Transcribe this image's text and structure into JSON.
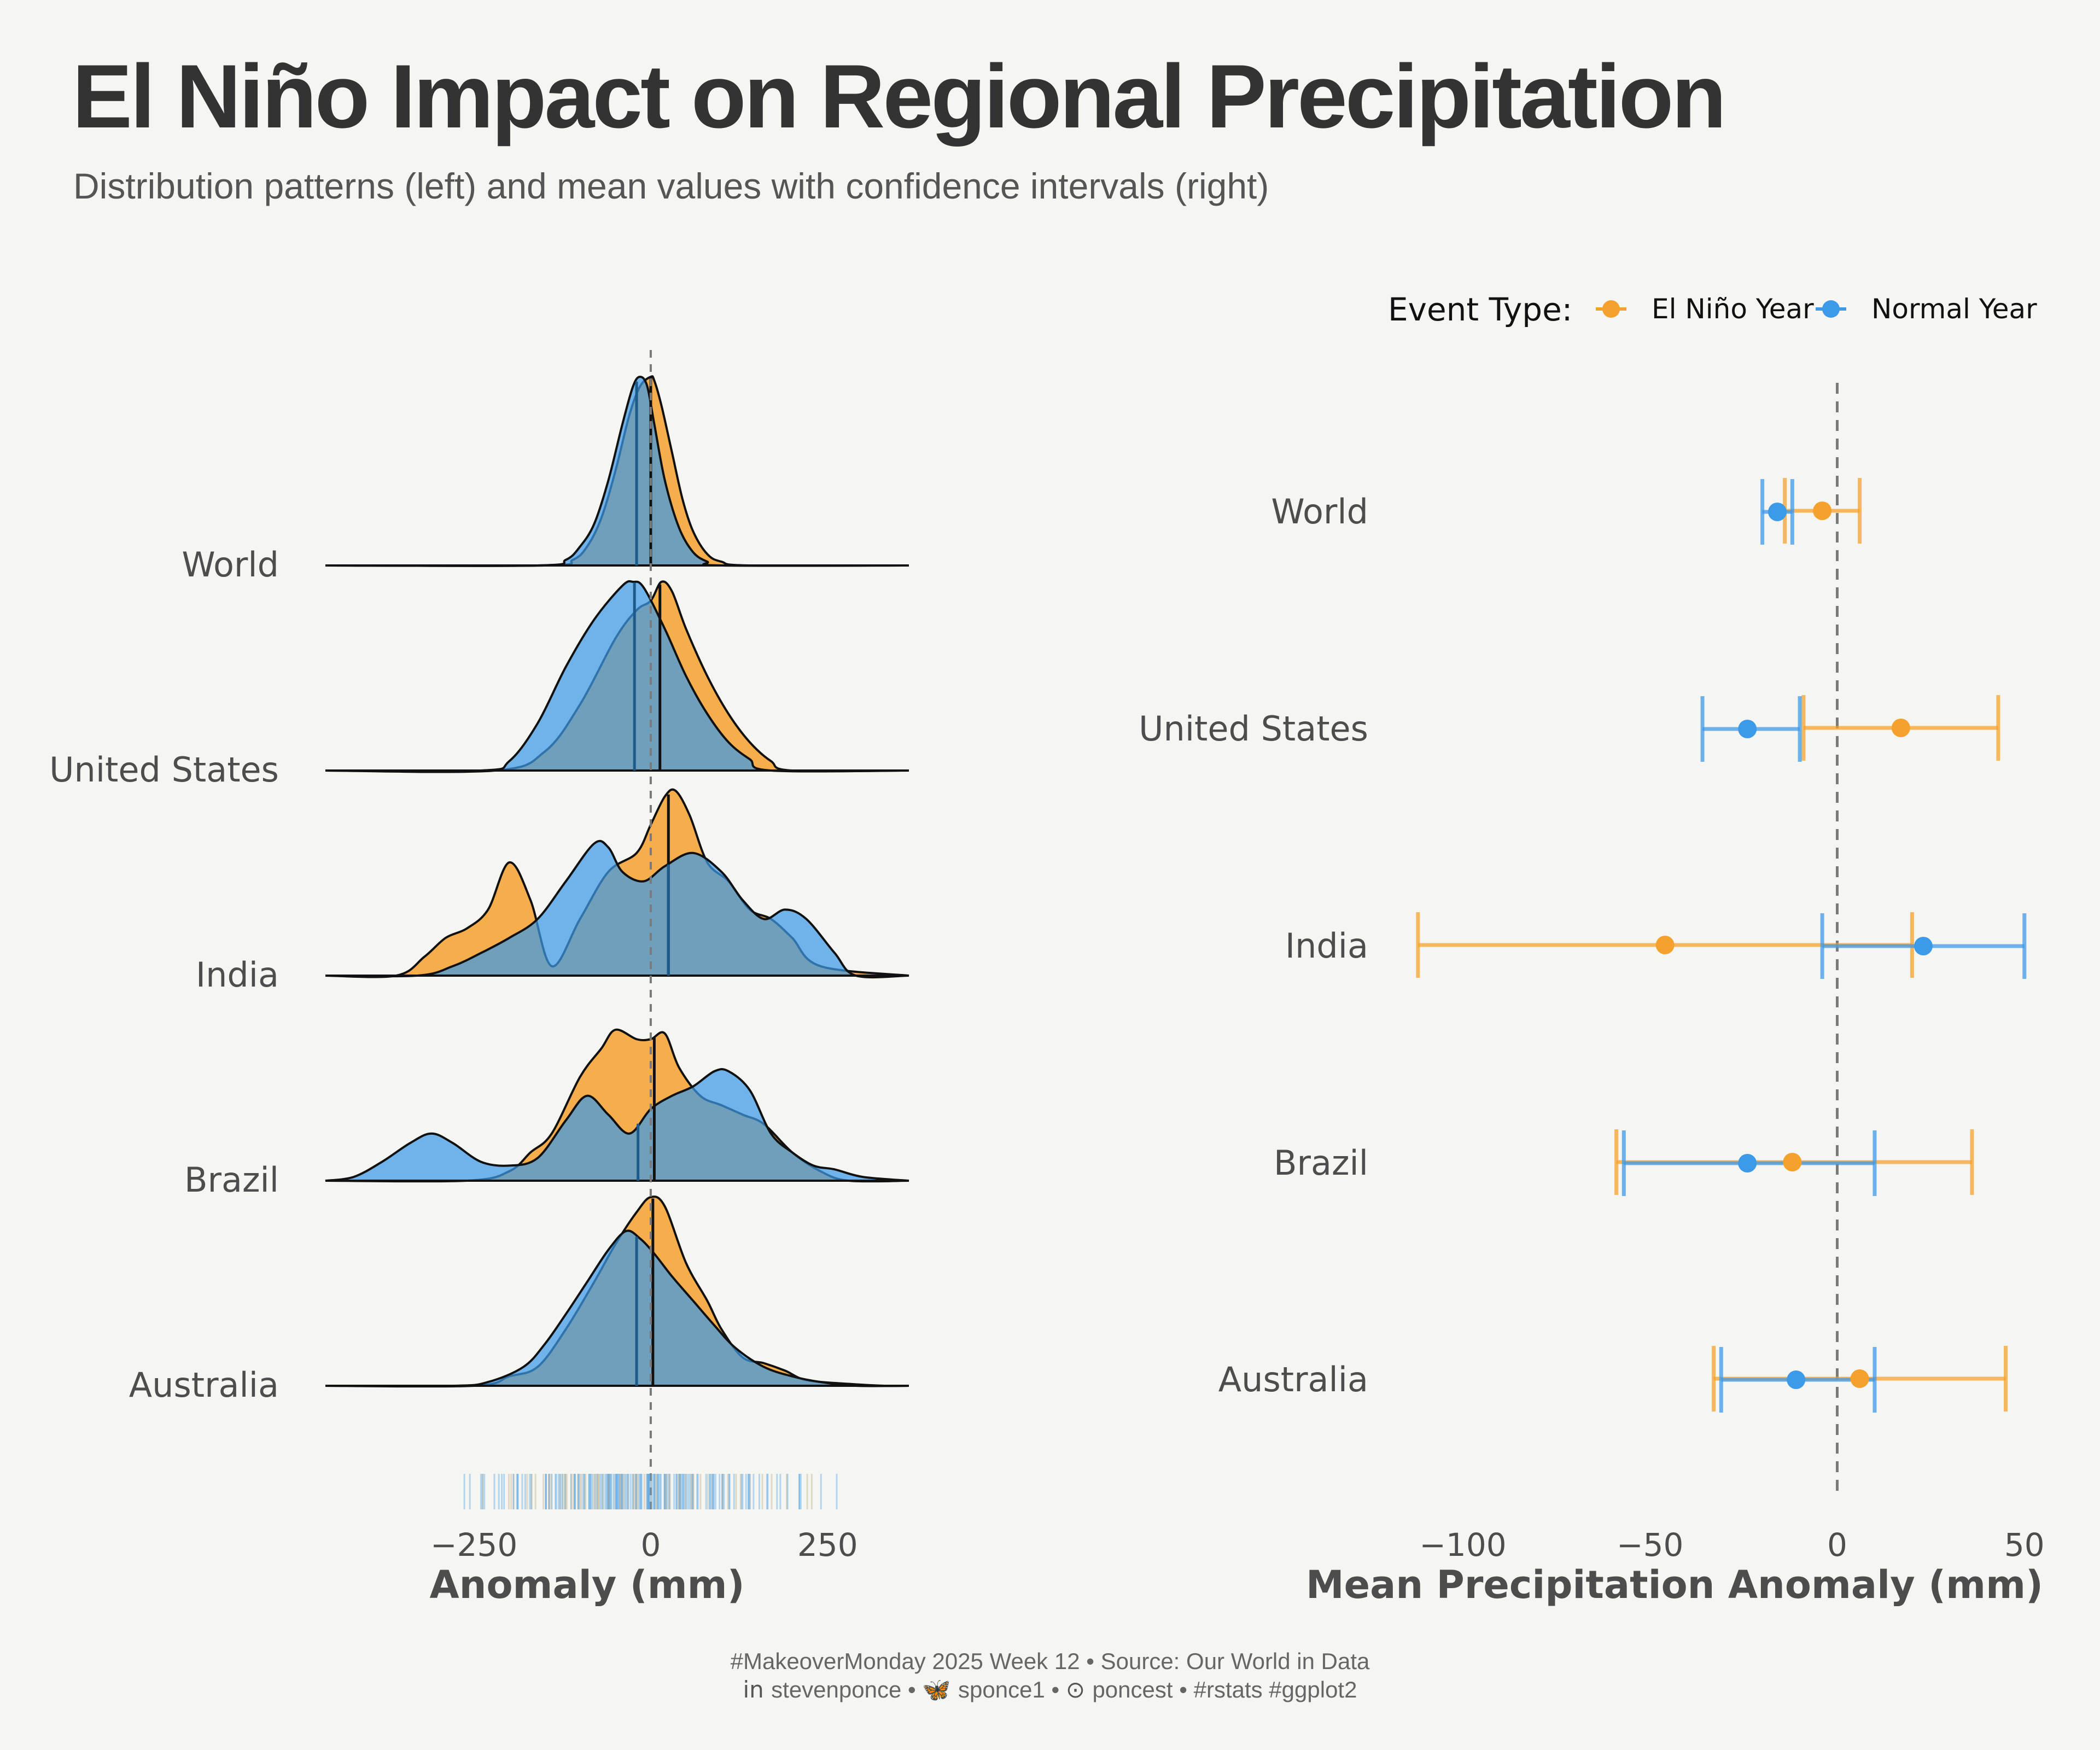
{
  "title": "El Niño Impact on Regional Precipitation",
  "subtitle": "Distribution patterns (left) and mean values with confidence intervals (right)",
  "colors": {
    "el_nino": "#f5a12e",
    "normal": "#3d9ae8",
    "overlap": "#5b8fae",
    "background": "#f5f5f2",
    "reference_line": "#7a7a7a"
  },
  "legend": {
    "title": "Event Type:",
    "position": "top-right",
    "items": [
      {
        "label": "El Niño Year",
        "color": "#f5a12e",
        "icon": "dot-line-icon"
      },
      {
        "label": "Normal Year",
        "color": "#3d9ae8",
        "icon": "dot-line-icon"
      }
    ]
  },
  "caption": {
    "line1": "#MakeoverMonday 2025 Week 12 • Source: Our World in Data",
    "line2_parts": [
      {
        "icon": "linkedin-icon",
        "glyph": "in",
        "text": "stevenponce"
      },
      {
        "sep": "•"
      },
      {
        "icon": "bluesky-icon",
        "glyph": "🦋",
        "text": "sponce1"
      },
      {
        "sep": "•"
      },
      {
        "icon": "github-icon",
        "glyph": "⊙",
        "text": "poncest"
      },
      {
        "sep": "•"
      },
      {
        "text": "#rstats #ggplot2"
      }
    ]
  },
  "chart_data": [
    {
      "type": "area",
      "subtype": "ridgeline-density",
      "xlabel": "Anomaly (mm)",
      "ylabel": "",
      "xlim": [
        -460,
        365
      ],
      "xticks": [
        -250,
        0,
        250
      ],
      "reference_line_x": 0,
      "grid": false,
      "regions": [
        {
          "name": "World",
          "el_nino": {
            "median": 0,
            "x": [
              -460,
              -150,
              -110,
              -90,
              -70,
              -50,
              -30,
              -15,
              0,
              5,
              15,
              30,
              45,
              60,
              80,
              100,
              140,
              365
            ],
            "density": [
              0,
              0,
              0.03,
              0.1,
              0.25,
              0.5,
              0.8,
              0.95,
              1,
              0.98,
              0.85,
              0.6,
              0.35,
              0.18,
              0.06,
              0.02,
              0,
              0
            ]
          },
          "normal": {
            "median": -20,
            "x": [
              -460,
              -160,
              -120,
              -100,
              -80,
              -60,
              -40,
              -25,
              -15,
              -5,
              5,
              20,
              40,
              60,
              80,
              100,
              365
            ],
            "density": [
              0,
              0,
              0.03,
              0.1,
              0.22,
              0.45,
              0.75,
              0.95,
              1,
              0.95,
              0.75,
              0.45,
              0.2,
              0.07,
              0.02,
              0,
              0
            ]
          }
        },
        {
          "name": "United States",
          "el_nino": {
            "median": 13,
            "x": [
              -460,
              -220,
              -150,
              -100,
              -50,
              -20,
              0,
              15,
              30,
              50,
              80,
              110,
              140,
              170,
              200,
              365
            ],
            "density": [
              0,
              0,
              0.1,
              0.35,
              0.7,
              0.85,
              0.9,
              1,
              0.95,
              0.75,
              0.5,
              0.3,
              0.15,
              0.05,
              0,
              0
            ]
          },
          "normal": {
            "median": -23,
            "x": [
              -460,
              -240,
              -200,
              -160,
              -120,
              -80,
              -40,
              -25,
              -10,
              20,
              50,
              80,
              110,
              140,
              170,
              365
            ],
            "density": [
              0,
              0,
              0.05,
              0.25,
              0.55,
              0.8,
              0.98,
              1,
              0.97,
              0.75,
              0.5,
              0.3,
              0.15,
              0.06,
              0,
              0
            ]
          }
        },
        {
          "name": "India",
          "el_nino": {
            "median": 25,
            "x": [
              -460,
              -360,
              -320,
              -290,
              -260,
              -230,
              -200,
              -170,
              -140,
              -100,
              -60,
              -20,
              0,
              20,
              35,
              55,
              80,
              110,
              140,
              170,
              200,
              240,
              365
            ],
            "density": [
              0,
              0,
              0.1,
              0.2,
              0.25,
              0.35,
              0.6,
              0.4,
              0.05,
              0.3,
              0.55,
              0.65,
              0.8,
              0.95,
              0.98,
              0.85,
              0.6,
              0.5,
              0.35,
              0.3,
              0.2,
              0.05,
              0
            ]
          },
          "normal": {
            "median": 25,
            "x": [
              -460,
              -330,
              -280,
              -240,
              -200,
              -160,
              -120,
              -80,
              -60,
              -40,
              -10,
              20,
              60,
              100,
              130,
              160,
              190,
              220,
              260,
              290,
              365
            ],
            "density": [
              0,
              0,
              0.05,
              0.12,
              0.2,
              0.3,
              0.5,
              0.7,
              0.68,
              0.55,
              0.5,
              0.58,
              0.65,
              0.55,
              0.4,
              0.3,
              0.35,
              0.3,
              0.12,
              0,
              0
            ]
          }
        },
        {
          "name": "Brazil",
          "el_nino": {
            "median": 5,
            "x": [
              -460,
              -260,
              -200,
              -170,
              -140,
              -100,
              -70,
              -50,
              -20,
              0,
              20,
              40,
              70,
              100,
              130,
              160,
              200,
              240,
              280,
              365
            ],
            "density": [
              0,
              0,
              0.05,
              0.15,
              0.25,
              0.55,
              0.7,
              0.8,
              0.75,
              0.75,
              0.78,
              0.6,
              0.45,
              0.4,
              0.35,
              0.3,
              0.15,
              0.05,
              0,
              0
            ]
          },
          "normal": {
            "median": -18,
            "x": [
              -460,
              -420,
              -380,
              -340,
              -310,
              -280,
              -240,
              -200,
              -160,
              -120,
              -90,
              -60,
              -30,
              0,
              30,
              60,
              90,
              110,
              140,
              170,
              200,
              230,
              260,
              300,
              365
            ],
            "density": [
              0,
              0.02,
              0.1,
              0.2,
              0.25,
              0.2,
              0.1,
              0.08,
              0.12,
              0.32,
              0.45,
              0.35,
              0.25,
              0.38,
              0.45,
              0.5,
              0.58,
              0.58,
              0.48,
              0.25,
              0.15,
              0.08,
              0.06,
              0.02,
              0
            ]
          }
        },
        {
          "name": "Australia",
          "el_nino": {
            "median": 3,
            "x": [
              -460,
              -250,
              -200,
              -160,
              -120,
              -80,
              -50,
              -20,
              0,
              20,
              50,
              80,
              100,
              130,
              160,
              190,
              220,
              280,
              330,
              365
            ],
            "density": [
              0,
              0,
              0.05,
              0.1,
              0.3,
              0.55,
              0.75,
              0.92,
              1,
              0.95,
              0.65,
              0.45,
              0.3,
              0.15,
              0.12,
              0.08,
              0.03,
              0.01,
              0,
              0
            ]
          },
          "normal": {
            "median": -20,
            "x": [
              -460,
              -280,
              -230,
              -180,
              -150,
              -120,
              -90,
              -60,
              -35,
              -15,
              5,
              30,
              60,
              90,
              120,
              160,
              200,
              240,
              290,
              365
            ],
            "density": [
              0,
              0,
              0.02,
              0.1,
              0.22,
              0.38,
              0.55,
              0.72,
              0.82,
              0.78,
              0.7,
              0.58,
              0.45,
              0.32,
              0.2,
              0.1,
              0.05,
              0.02,
              0,
              0
            ]
          }
        }
      ]
    },
    {
      "type": "scatter",
      "subtype": "point-errorbar",
      "xlabel": "Mean Precipitation Anomaly (mm)",
      "ylabel": "",
      "xlim": [
        -113,
        55
      ],
      "xticks": [
        -100,
        -50,
        0,
        50
      ],
      "reference_line_x": 0,
      "grid": false,
      "categories": [
        "World",
        "United States",
        "India",
        "Brazil",
        "Australia"
      ],
      "series": [
        {
          "name": "El Niño Year",
          "color": "#f5a12e",
          "mean": [
            -4,
            17,
            -46,
            -12,
            6
          ],
          "ci_low": [
            -14,
            -9,
            -112,
            -59,
            -33
          ],
          "ci_high": [
            6,
            43,
            20,
            36,
            45
          ]
        },
        {
          "name": "Normal Year",
          "color": "#3d9ae8",
          "mean": [
            -16,
            -24,
            23,
            -24,
            -11
          ],
          "ci_low": [
            -20,
            -36,
            -4,
            -57,
            -31
          ],
          "ci_high": [
            -12,
            -10,
            50,
            10,
            10
          ]
        }
      ]
    }
  ]
}
